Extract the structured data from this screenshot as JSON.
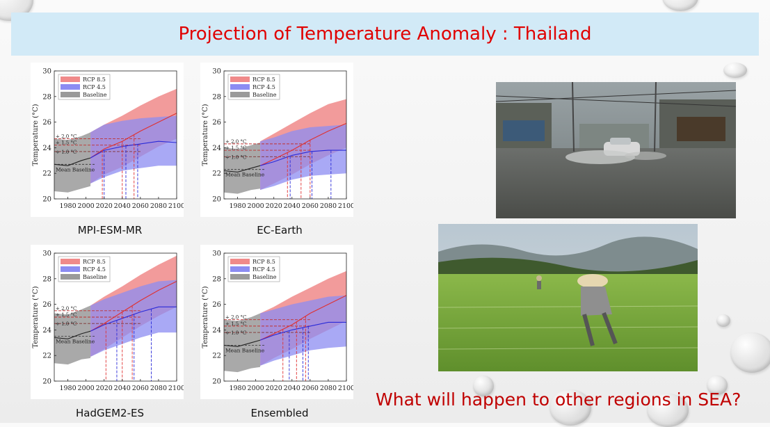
{
  "title": "Projection of Temperature Anomaly : Thailand",
  "question": "What will happen to other regions in SEA?",
  "colors": {
    "rcp85": "#f08a8a",
    "rcp45": "#8c8cf2",
    "baseline": "#9a9a9a",
    "title": "#e00000",
    "question": "#c00000",
    "title_bg": "#d2eaf7"
  },
  "chart_data": [
    {
      "type": "area",
      "title": "MPI-ESM-MR",
      "ylabel": "Temperature (°C)",
      "xlim": [
        1965,
        2100
      ],
      "ylim": [
        20,
        30
      ],
      "xticks": [
        1980,
        2000,
        2020,
        2040,
        2060,
        2080,
        2100
      ],
      "yticks": [
        20,
        22,
        24,
        26,
        28,
        30
      ],
      "legend": [
        "RCP 8.5",
        "RCP 4.5",
        "Baseline"
      ],
      "legend_position": "top-left",
      "mean_baseline": 22.7,
      "mean_baseline_label": "Mean Baseline",
      "thresholds": [
        {
          "label": "+ 2.0 °C",
          "value": 24.7
        },
        {
          "label": "+ 1.5 °C",
          "value": 24.2
        },
        {
          "label": "+ 1.0 °C",
          "value": 23.7
        }
      ],
      "series": [
        {
          "name": "Baseline",
          "x": [
            1965,
            1980,
            1995,
            2005
          ],
          "y": [
            22.7,
            22.6,
            23.0,
            23.2
          ],
          "lower": [
            20.6,
            20.5,
            20.8,
            21.0
          ],
          "upper": [
            24.7,
            24.6,
            24.9,
            25.2
          ]
        },
        {
          "name": "RCP 4.5",
          "x": [
            2005,
            2020,
            2040,
            2060,
            2080,
            2100
          ],
          "y": [
            23.2,
            23.8,
            24.1,
            24.3,
            24.5,
            24.4
          ],
          "lower": [
            21.2,
            21.7,
            22.2,
            22.4,
            22.6,
            22.6
          ],
          "upper": [
            25.2,
            25.8,
            26.1,
            26.3,
            26.4,
            26.5
          ]
        },
        {
          "name": "RCP 8.5",
          "x": [
            2005,
            2020,
            2040,
            2060,
            2080,
            2100
          ],
          "y": [
            23.2,
            23.9,
            24.5,
            25.3,
            26.0,
            26.7
          ],
          "lower": [
            21.2,
            21.9,
            22.5,
            23.3,
            24.1,
            24.7
          ],
          "upper": [
            25.2,
            25.8,
            26.5,
            27.3,
            28.0,
            28.6
          ]
        }
      ],
      "crossings": {
        "RCP 8.5": [
          2018,
          2040,
          2053
        ],
        "RCP 4.5": [
          2020,
          2044,
          2057
        ]
      }
    },
    {
      "type": "area",
      "title": "EC-Earth",
      "ylabel": "Temperature (°C)",
      "xlim": [
        1965,
        2100
      ],
      "ylim": [
        20,
        30
      ],
      "xticks": [
        1980,
        2000,
        2020,
        2040,
        2060,
        2080,
        2100
      ],
      "yticks": [
        20,
        22,
        24,
        26,
        28,
        30
      ],
      "legend": [
        "RCP 8.5",
        "RCP 4.5",
        "Baseline"
      ],
      "legend_position": "top-left",
      "mean_baseline": 22.3,
      "mean_baseline_label": "Mean Baseline",
      "thresholds": [
        {
          "label": "+ 2.0 °C",
          "value": 24.3
        },
        {
          "label": "+ 1.5 °C",
          "value": 23.8
        },
        {
          "label": "+ 1.0 °C",
          "value": 23.3
        }
      ],
      "series": [
        {
          "name": "Baseline",
          "x": [
            1965,
            1980,
            1995,
            2005
          ],
          "y": [
            22.2,
            22.1,
            22.4,
            22.6
          ],
          "lower": [
            20.5,
            20.4,
            20.7,
            20.8
          ],
          "upper": [
            24.0,
            23.9,
            24.2,
            24.4
          ]
        },
        {
          "name": "RCP 4.5",
          "x": [
            2005,
            2020,
            2040,
            2060,
            2080,
            2100
          ],
          "y": [
            22.6,
            22.9,
            23.4,
            23.7,
            23.8,
            23.8
          ],
          "lower": [
            20.7,
            21.0,
            21.5,
            21.8,
            21.9,
            22.0
          ],
          "upper": [
            24.5,
            24.8,
            25.3,
            25.6,
            25.7,
            25.8
          ]
        },
        {
          "name": "RCP 8.5",
          "x": [
            2005,
            2020,
            2040,
            2060,
            2080,
            2100
          ],
          "y": [
            22.6,
            23.1,
            23.8,
            24.6,
            25.3,
            25.9
          ],
          "lower": [
            20.7,
            21.2,
            21.9,
            22.7,
            23.4,
            24.0
          ],
          "upper": [
            24.5,
            25.1,
            25.9,
            26.7,
            27.4,
            27.8
          ]
        }
      ],
      "crossings": {
        "RCP 8.5": [
          2035,
          2050,
          2060
        ],
        "RCP 4.5": [
          2038,
          2062,
          2083
        ]
      }
    },
    {
      "type": "area",
      "title": "HadGEM2-ES",
      "ylabel": "Temperature (°C)",
      "xlim": [
        1965,
        2100
      ],
      "ylim": [
        20,
        30
      ],
      "xticks": [
        1980,
        2000,
        2020,
        2040,
        2060,
        2080,
        2100
      ],
      "yticks": [
        20,
        22,
        24,
        26,
        28,
        30
      ],
      "legend": [
        "RCP 8.5",
        "RCP 4.5",
        "Baseline"
      ],
      "legend_position": "top-left",
      "mean_baseline": 23.5,
      "mean_baseline_label": "Mean Baseline",
      "thresholds": [
        {
          "label": "+ 2.0 °C",
          "value": 25.5
        },
        {
          "label": "+ 1.5 °C",
          "value": 25.0
        },
        {
          "label": "+ 1.0 °C",
          "value": 24.5
        }
      ],
      "series": [
        {
          "name": "Baseline",
          "x": [
            1965,
            1980,
            1995,
            2005
          ],
          "y": [
            23.4,
            23.3,
            23.7,
            23.9
          ],
          "lower": [
            21.4,
            21.3,
            21.7,
            21.8
          ],
          "upper": [
            25.3,
            25.2,
            25.6,
            25.9
          ]
        },
        {
          "name": "RCP 4.5",
          "x": [
            2005,
            2020,
            2040,
            2060,
            2080,
            2100
          ],
          "y": [
            23.9,
            24.4,
            24.9,
            25.4,
            25.8,
            25.8
          ],
          "lower": [
            21.9,
            22.4,
            22.9,
            23.4,
            23.8,
            23.8
          ],
          "upper": [
            25.9,
            26.4,
            26.9,
            27.4,
            27.8,
            27.9
          ]
        },
        {
          "name": "RCP 8.5",
          "x": [
            2005,
            2020,
            2040,
            2060,
            2080,
            2100
          ],
          "y": [
            23.9,
            24.5,
            25.4,
            26.3,
            27.1,
            27.8
          ],
          "lower": [
            21.9,
            22.5,
            23.4,
            24.3,
            25.1,
            25.8
          ],
          "upper": [
            25.9,
            26.6,
            27.4,
            28.3,
            29.1,
            29.8
          ]
        }
      ],
      "crossings": {
        "RCP 8.5": [
          2022,
          2040,
          2051
        ],
        "RCP 4.5": [
          2034,
          2053,
          2072
        ]
      }
    },
    {
      "type": "area",
      "title": "Ensembled",
      "ylabel": "Temperature (°C)",
      "xlim": [
        1965,
        2100
      ],
      "ylim": [
        20,
        30
      ],
      "xticks": [
        1980,
        2000,
        2020,
        2040,
        2060,
        2080,
        2100
      ],
      "yticks": [
        20,
        22,
        24,
        26,
        28,
        30
      ],
      "legend": [
        "RCP 8.5",
        "RCP 4.5",
        "Baseline"
      ],
      "legend_position": "top-left",
      "mean_baseline": 22.8,
      "mean_baseline_label": "Mean Baseline",
      "thresholds": [
        {
          "label": "+ 2.0 °C",
          "value": 24.8
        },
        {
          "label": "+ 1.5 °C",
          "value": 24.3
        },
        {
          "label": "+ 1.0 °C",
          "value": 23.8
        }
      ],
      "series": [
        {
          "name": "Baseline",
          "x": [
            1965,
            1980,
            1995,
            2005
          ],
          "y": [
            22.8,
            22.7,
            23.0,
            23.2
          ],
          "lower": [
            20.8,
            20.7,
            21.0,
            21.1
          ],
          "upper": [
            24.8,
            24.7,
            25.0,
            25.3
          ]
        },
        {
          "name": "RCP 4.5",
          "x": [
            2005,
            2020,
            2040,
            2060,
            2080,
            2100
          ],
          "y": [
            23.2,
            23.6,
            24.0,
            24.3,
            24.6,
            24.6
          ],
          "lower": [
            21.2,
            21.6,
            22.0,
            22.4,
            22.6,
            22.7
          ],
          "upper": [
            25.3,
            25.6,
            26.0,
            26.3,
            26.6,
            26.7
          ]
        },
        {
          "name": "RCP 8.5",
          "x": [
            2005,
            2020,
            2040,
            2060,
            2080,
            2100
          ],
          "y": [
            23.2,
            23.7,
            24.4,
            25.3,
            26.0,
            26.7
          ],
          "lower": [
            21.2,
            21.8,
            22.5,
            23.3,
            24.0,
            24.7
          ],
          "upper": [
            25.3,
            25.8,
            26.6,
            27.3,
            28.0,
            28.6
          ]
        }
      ],
      "crossings": {
        "RCP 8.5": [
          2030,
          2045,
          2055
        ],
        "RCP 4.5": [
          2037,
          2052,
          2058
        ]
      }
    }
  ]
}
